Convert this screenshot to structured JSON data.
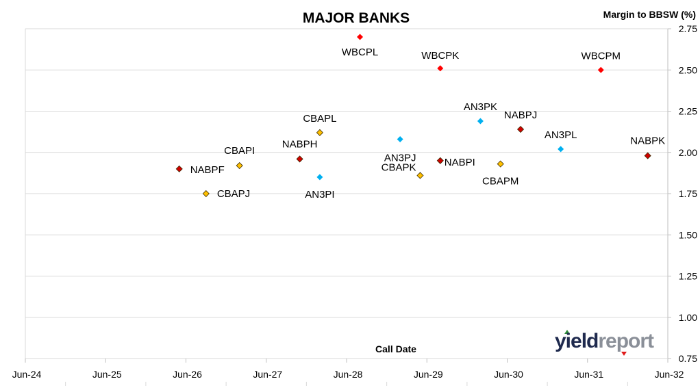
{
  "chart_data": {
    "type": "scatter",
    "title": "MAJOR BANKS",
    "xlabel": "Call Date",
    "ylabel": "Margin to BBSW (%)",
    "x_ticks": [
      "Jun-24",
      "Jun-25",
      "Jun-26",
      "Jun-27",
      "Jun-28",
      "Jun-29",
      "Jun-30",
      "Jun-31",
      "Jun-32"
    ],
    "y_ticks": [
      "0.75",
      "1.00",
      "1.25",
      "1.50",
      "1.75",
      "2.00",
      "2.25",
      "2.50",
      "2.75"
    ],
    "xlim": [
      "Jun-24",
      "Jun-32"
    ],
    "ylim": [
      0.75,
      2.75
    ],
    "grid": "horizontal",
    "y_axis_position": "right",
    "series": [
      {
        "color": "#ff0000",
        "marker": "diamond",
        "points": [
          {
            "label": "WBCPL",
            "x": "2028-09",
            "y": 2.7
          },
          {
            "label": "WBCPK",
            "x": "2029-09",
            "y": 2.51
          },
          {
            "label": "WBCPM",
            "x": "2031-09",
            "y": 2.5
          }
        ]
      },
      {
        "color": "#00b0f0",
        "marker": "diamond",
        "points": [
          {
            "label": "AN3PI",
            "x": "2028-03",
            "y": 1.85
          },
          {
            "label": "AN3PJ",
            "x": "2029-03",
            "y": 2.08
          },
          {
            "label": "AN3PK",
            "x": "2030-03",
            "y": 2.19
          },
          {
            "label": "AN3PL",
            "x": "2031-03",
            "y": 2.02
          }
        ]
      },
      {
        "color": "#ffc000",
        "marker": "diamond",
        "points": [
          {
            "label": "CBAPJ",
            "x": "2026-10",
            "y": 1.75
          },
          {
            "label": "CBAPI",
            "x": "2027-03",
            "y": 1.92
          },
          {
            "label": "CBAPL",
            "x": "2028-03",
            "y": 2.12
          },
          {
            "label": "CBAPK",
            "x": "2029-06",
            "y": 1.86
          },
          {
            "label": "CBAPM",
            "x": "2030-06",
            "y": 1.93
          }
        ]
      },
      {
        "color": "#d00000",
        "marker": "diamond",
        "points": [
          {
            "label": "NABPF",
            "x": "2026-06",
            "y": 1.9
          },
          {
            "label": "NABPH",
            "x": "2027-12",
            "y": 1.96
          },
          {
            "label": "NABPI",
            "x": "2029-09",
            "y": 1.95
          },
          {
            "label": "NABPJ",
            "x": "2030-09",
            "y": 2.14
          },
          {
            "label": "NABPK",
            "x": "2032-04",
            "y": 1.98
          }
        ]
      }
    ]
  },
  "branding": {
    "logo_text_dark": "yield",
    "logo_text_light": "report",
    "logo_dark_color": "#1f2a4e",
    "logo_light_color": "#8a8f98",
    "arrow_up_color": "#2e8b3a",
    "arrow_down_color": "#e01b1b"
  }
}
